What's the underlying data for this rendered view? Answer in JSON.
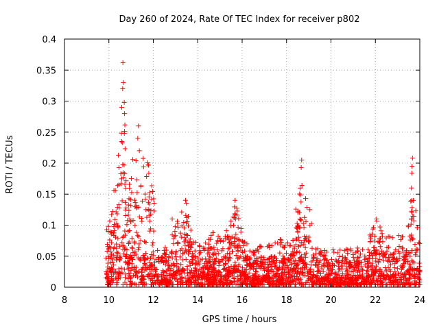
{
  "chart_data": {
    "type": "scatter",
    "title": "Day 260 of 2024, Rate Of TEC Index for receiver p802",
    "xlabel": "GPS time / hours",
    "ylabel": "ROTI / TECUs",
    "xlim": [
      8,
      24
    ],
    "ylim": [
      0,
      0.4
    ],
    "x_ticks": [
      8,
      10,
      12,
      14,
      16,
      18,
      20,
      22,
      24
    ],
    "x_tick_labels": [
      "8",
      "10",
      "12",
      "14",
      "16",
      "18",
      "20",
      "22",
      "24"
    ],
    "y_ticks": [
      0,
      0.05,
      0.1,
      0.15,
      0.2,
      0.25,
      0.3,
      0.35,
      0.4
    ],
    "y_tick_labels": [
      "0",
      "0.05",
      "0.1",
      "0.15",
      "0.2",
      "0.25",
      "0.3",
      "0.35",
      "0.4"
    ],
    "grid": true,
    "marker": "+",
    "color": "#ff0000",
    "envelope": [
      [
        9.85,
        0.09
      ],
      [
        10.0,
        0.1
      ],
      [
        10.2,
        0.15
      ],
      [
        10.4,
        0.22
      ],
      [
        10.55,
        0.33
      ],
      [
        10.6,
        0.36
      ],
      [
        10.75,
        0.28
      ],
      [
        10.9,
        0.2
      ],
      [
        11.1,
        0.22
      ],
      [
        11.25,
        0.26
      ],
      [
        11.5,
        0.21
      ],
      [
        11.7,
        0.21
      ],
      [
        11.9,
        0.19
      ],
      [
        12.2,
        0.08
      ],
      [
        12.6,
        0.07
      ],
      [
        13.3,
        0.13
      ],
      [
        13.5,
        0.14
      ],
      [
        13.8,
        0.08
      ],
      [
        14.2,
        0.07
      ],
      [
        14.6,
        0.09
      ],
      [
        15.2,
        0.08
      ],
      [
        15.65,
        0.14
      ],
      [
        16.1,
        0.09
      ],
      [
        16.5,
        0.06
      ],
      [
        17.0,
        0.07
      ],
      [
        17.7,
        0.08
      ],
      [
        18.2,
        0.07
      ],
      [
        18.65,
        0.205
      ],
      [
        19.0,
        0.125
      ],
      [
        19.3,
        0.07
      ],
      [
        20.0,
        0.06
      ],
      [
        20.5,
        0.07
      ],
      [
        21.0,
        0.06
      ],
      [
        21.5,
        0.07
      ],
      [
        21.9,
        0.1
      ],
      [
        22.1,
        0.11
      ],
      [
        22.5,
        0.08
      ],
      [
        23.0,
        0.09
      ],
      [
        23.4,
        0.085
      ],
      [
        23.55,
        0.14
      ],
      [
        23.65,
        0.21
      ],
      [
        23.8,
        0.13
      ],
      [
        24.0,
        0.09
      ]
    ],
    "highlights": [
      {
        "x": 10.63,
        "y": 0.362
      },
      {
        "x": 10.65,
        "y": 0.33
      },
      {
        "x": 10.62,
        "y": 0.32
      },
      {
        "x": 10.58,
        "y": 0.29
      },
      {
        "x": 10.7,
        "y": 0.28
      },
      {
        "x": 11.33,
        "y": 0.26
      },
      {
        "x": 11.3,
        "y": 0.24
      },
      {
        "x": 18.68,
        "y": 0.205
      },
      {
        "x": 18.66,
        "y": 0.193
      },
      {
        "x": 23.67,
        "y": 0.208
      },
      {
        "x": 23.65,
        "y": 0.195
      },
      {
        "x": 23.62,
        "y": 0.16
      },
      {
        "x": 19.05,
        "y": 0.125
      },
      {
        "x": 15.68,
        "y": 0.14
      },
      {
        "x": 13.45,
        "y": 0.14
      },
      {
        "x": 12.85,
        "y": 0.11
      },
      {
        "x": 22.05,
        "y": 0.11
      }
    ],
    "n_points": 2600
  }
}
